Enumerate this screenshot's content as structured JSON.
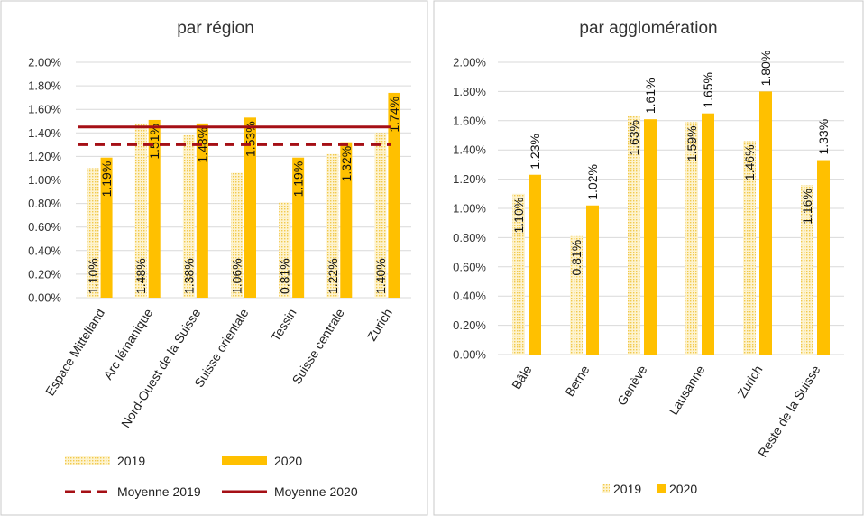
{
  "colors": {
    "bar_2019": "#fbe9a8",
    "bar_2020": "#ffc000",
    "mean_line": "#a50f15",
    "panel_border": "#c8c8c8"
  },
  "chart_data": [
    {
      "type": "bar",
      "title": "par région",
      "xlabel": "",
      "ylabel": "",
      "ylim": [
        0,
        0.02
      ],
      "yticks": [
        "0.00%",
        "0.20%",
        "0.40%",
        "0.60%",
        "0.80%",
        "1.00%",
        "1.20%",
        "1.40%",
        "1.60%",
        "1.80%",
        "2.00%"
      ],
      "categories": [
        "Espace Mittelland",
        "Arc lémanique",
        "Nord-Ouest de la Suisse",
        "Suisse orientale",
        "Tessin",
        "Suisse centrale",
        "Zurich"
      ],
      "series": [
        {
          "name": "2019",
          "values": [
            0.011,
            0.0148,
            0.0138,
            0.0106,
            0.0081,
            0.0122,
            0.014
          ],
          "labels": [
            "1.10%",
            "1.48%",
            "1.38%",
            "1.06%",
            "0.81%",
            "1.22%",
            "1.40%"
          ]
        },
        {
          "name": "2020",
          "values": [
            0.0119,
            0.0151,
            0.0148,
            0.0153,
            0.0119,
            0.0132,
            0.0174
          ],
          "labels": [
            "1.19%",
            "1.51%",
            "1.48%",
            "1.53%",
            "1.19%",
            "1.32%",
            "1.74%"
          ]
        }
      ],
      "lines": [
        {
          "name": "Moyenne 2019",
          "value": 0.013,
          "style": "dashed"
        },
        {
          "name": "Moyenne 2020",
          "value": 0.0145,
          "style": "solid"
        }
      ],
      "grid": true,
      "legend": "bottom"
    },
    {
      "type": "bar",
      "title": "par agglomération",
      "xlabel": "",
      "ylabel": "",
      "ylim": [
        0,
        0.02
      ],
      "yticks": [
        "0.00%",
        "0.20%",
        "0.40%",
        "0.60%",
        "0.80%",
        "1.00%",
        "1.20%",
        "1.40%",
        "1.60%",
        "1.80%",
        "2.00%"
      ],
      "categories": [
        "Bâle",
        "Berne",
        "Genève",
        "Lausanne",
        "Zurich",
        "Reste de la Suisse"
      ],
      "series": [
        {
          "name": "2019",
          "values": [
            0.011,
            0.0081,
            0.0163,
            0.0159,
            0.0146,
            0.0116
          ],
          "labels": [
            "1.10%",
            "0.81%",
            "1.63%",
            "1.59%",
            "1.46%",
            "1.16%"
          ]
        },
        {
          "name": "2020",
          "values": [
            0.0123,
            0.0102,
            0.0161,
            0.0165,
            0.018,
            0.0133
          ],
          "labels": [
            "1.23%",
            "1.02%",
            "1.61%",
            "1.65%",
            "1.80%",
            "1.33%"
          ]
        }
      ],
      "grid": true,
      "legend": "bottom"
    }
  ]
}
